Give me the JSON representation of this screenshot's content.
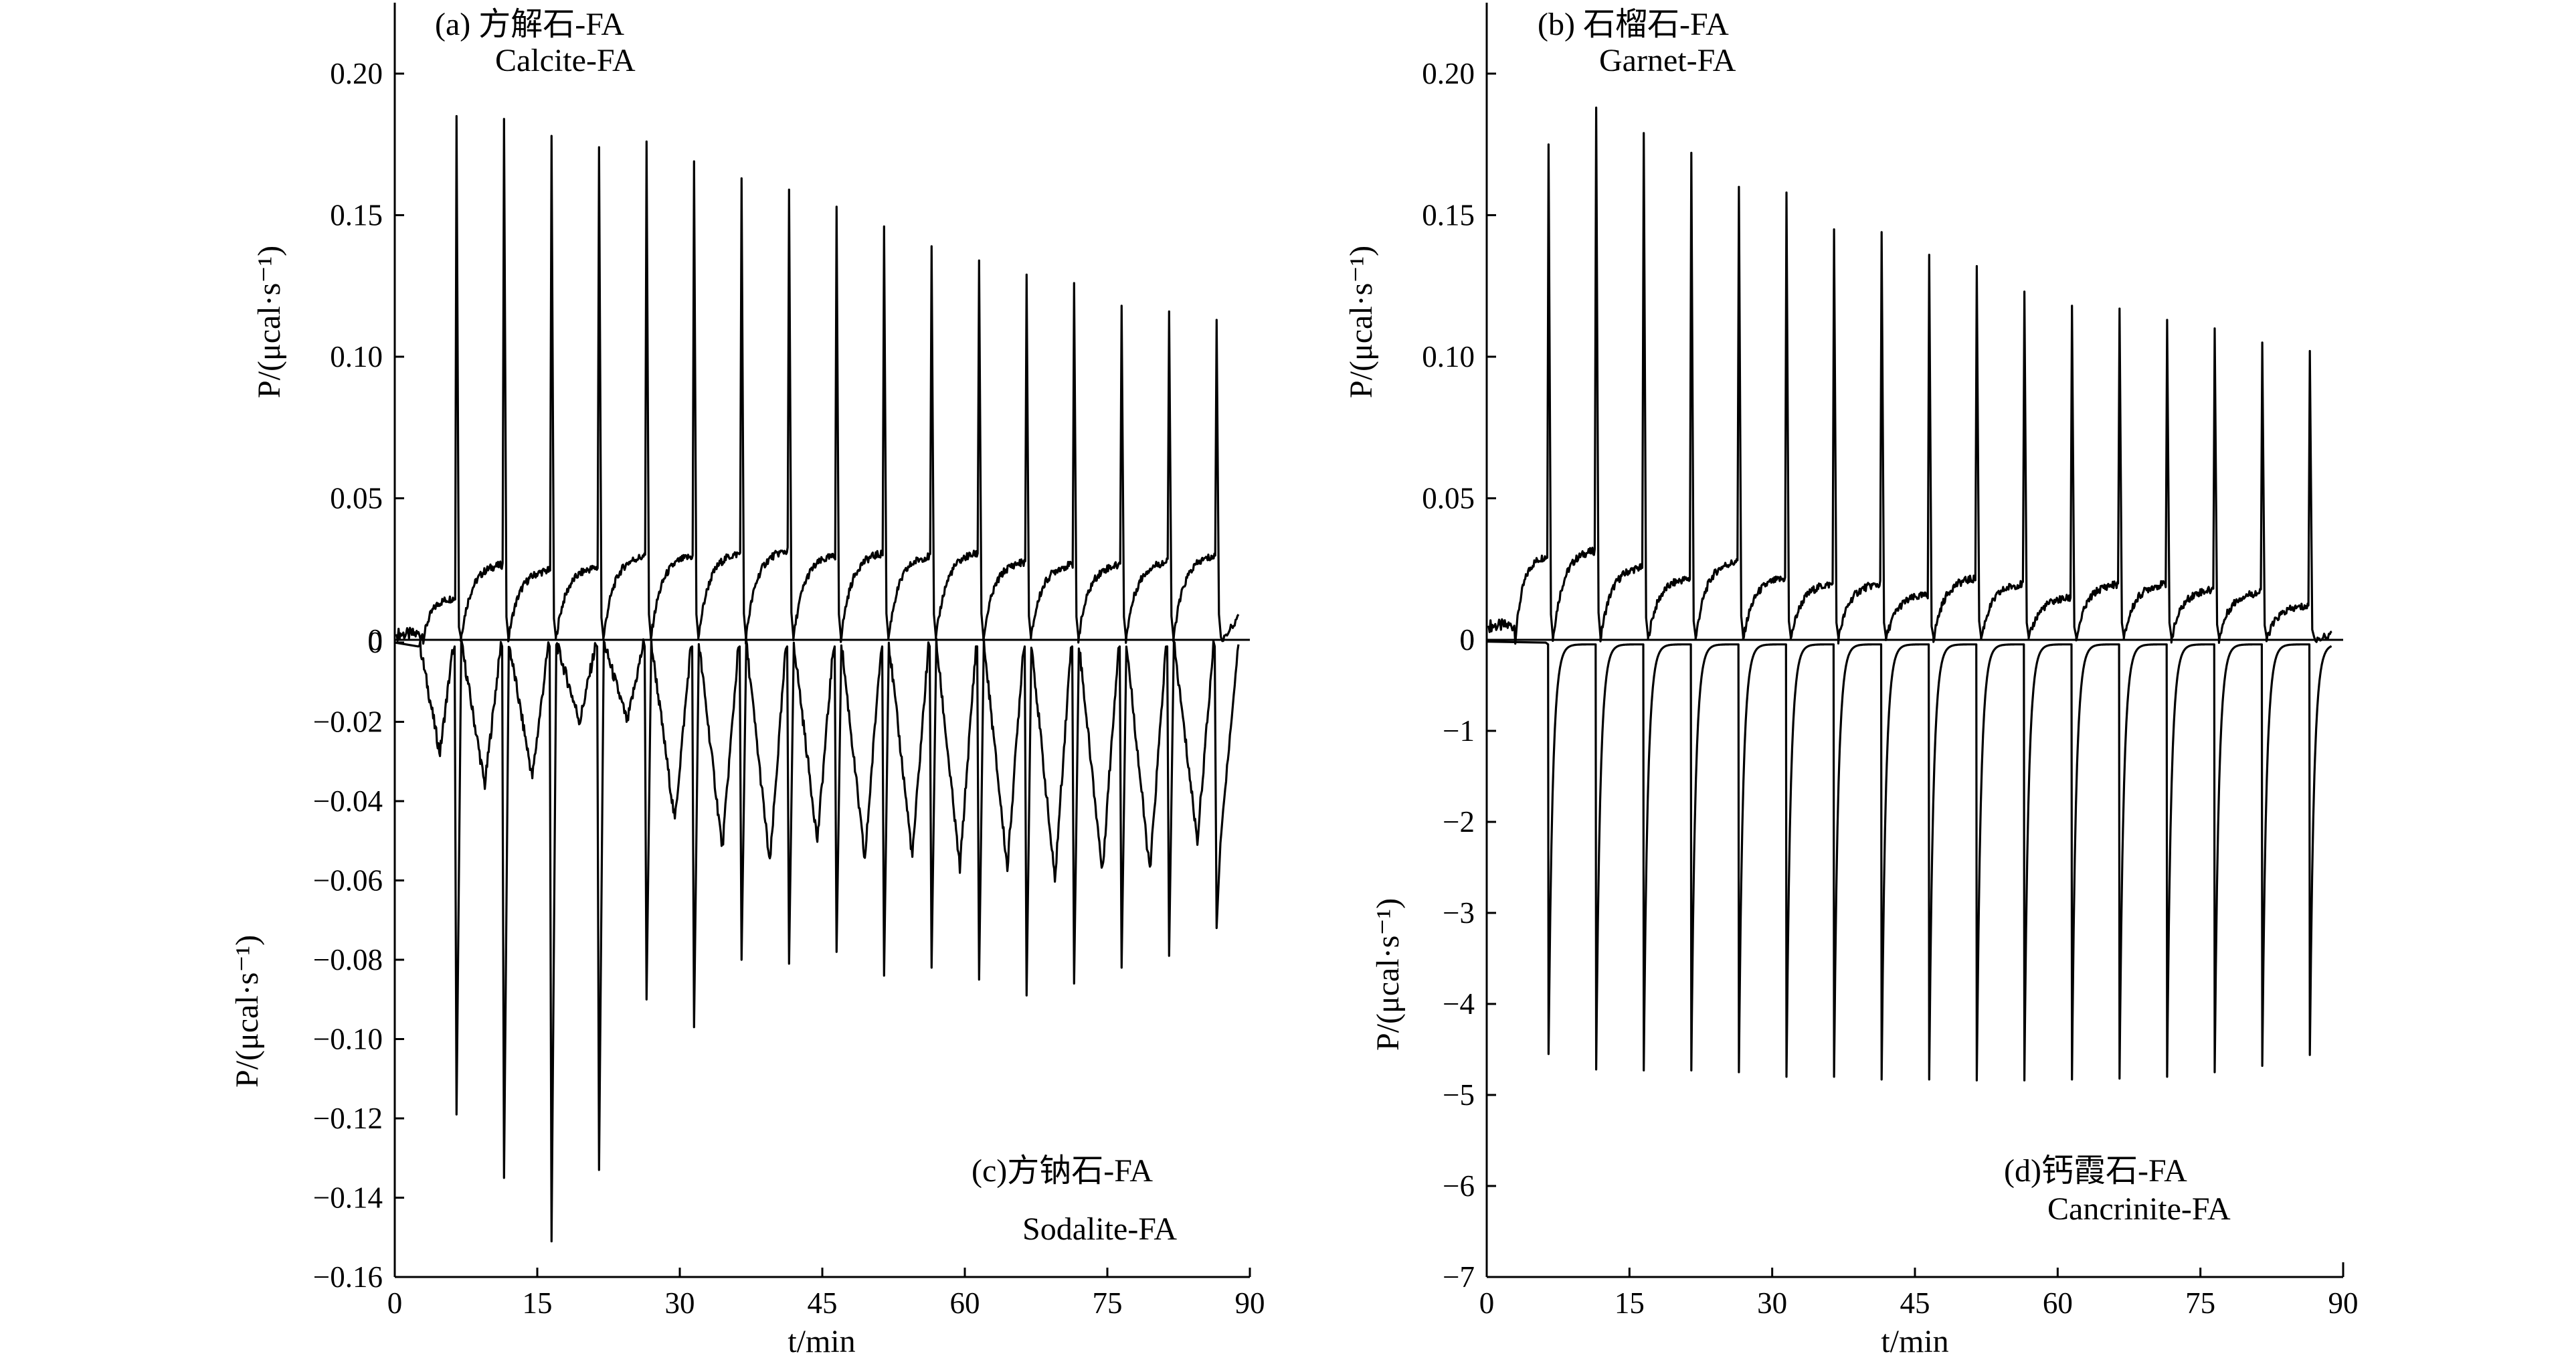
{
  "chart_data": [
    {
      "panel": "a",
      "type": "line",
      "title_cn": "(a) 方解石-FA",
      "title_en": "Calcite-FA",
      "ylabel": "P/(μcal·s⁻¹)",
      "xlim": [
        0,
        90
      ],
      "ylim": [
        0,
        0.225
      ],
      "yticks": [
        0,
        0.05,
        0.1,
        0.15,
        0.2
      ],
      "ytick_labels": [
        "0",
        "0.05",
        "0.10",
        "0.15",
        "0.20"
      ],
      "series": [
        {
          "peaks_x": [
            6.5,
            11.5,
            16.5,
            21.5,
            26.5,
            31.5,
            36.5,
            41.5,
            46.5,
            51.5,
            56.5,
            61.5,
            66.5,
            71.5,
            76.5,
            81.5,
            86.5
          ],
          "peaks_y": [
            0.185,
            0.184,
            0.178,
            0.174,
            0.176,
            0.169,
            0.163,
            0.159,
            0.153,
            0.146,
            0.139,
            0.134,
            0.129,
            0.126,
            0.118,
            0.116,
            0.113
          ],
          "baseline_y": [
            0.015,
            0.027,
            0.025,
            0.026,
            0.03,
            0.03,
            0.031,
            0.032,
            0.03,
            0.031,
            0.03,
            0.031,
            0.028,
            0.027,
            0.027,
            0.028,
            0.03
          ],
          "start_y": 0.002,
          "end_y": 0.008
        }
      ]
    },
    {
      "panel": "b",
      "type": "line",
      "title_cn": "(b) 石榴石-FA",
      "title_en": "Garnet-FA",
      "ylabel": "P/(μcal·s⁻¹)",
      "xlim": [
        0,
        90
      ],
      "ylim": [
        0,
        0.225
      ],
      "yticks": [
        0,
        0.05,
        0.1,
        0.15,
        0.2
      ],
      "ytick_labels": [
        "0",
        "0.05",
        "0.10",
        "0.15",
        "0.20"
      ],
      "series": [
        {
          "peaks_x": [
            6.5,
            11.5,
            16.5,
            21.5,
            26.5,
            31.5,
            36.5,
            41.5,
            46.5,
            51.5,
            56.5,
            61.5,
            66.5,
            71.5,
            76.5,
            81.5,
            86.5
          ],
          "peaks_y": [
            0.175,
            0.188,
            0.179,
            0.172,
            0.16,
            0.158,
            0.145,
            0.144,
            0.136,
            0.132,
            0.123,
            0.118,
            0.117,
            0.113,
            0.11,
            0.105,
            0.102
          ],
          "baseline_y": [
            0.03,
            0.032,
            0.026,
            0.022,
            0.028,
            0.022,
            0.02,
            0.02,
            0.016,
            0.022,
            0.02,
            0.015,
            0.02,
            0.02,
            0.018,
            0.017,
            0.012
          ],
          "start_y": 0.005,
          "end_y": 0.002
        }
      ]
    },
    {
      "panel": "c",
      "type": "line",
      "title_cn": "(c)方钠石-FA",
      "title_en": "Sodalite-FA",
      "ylabel": "P/(μcal·s⁻¹)",
      "xlabel": "t/min",
      "xlim": [
        0,
        90
      ],
      "xticks": [
        0,
        15,
        30,
        45,
        60,
        75,
        90
      ],
      "ylim": [
        -0.16,
        0
      ],
      "yticks": [
        0,
        -0.02,
        -0.04,
        -0.06,
        -0.08,
        -0.1,
        -0.12,
        -0.14,
        -0.16
      ],
      "ytick_labels": [
        "0",
        "−0.02",
        "−0.04",
        "−0.06",
        "−0.08",
        "−0.10",
        "−0.12",
        "−0.14",
        "−0.16"
      ],
      "series": [
        {
          "peaks_x": [
            6.5,
            11.5,
            16.5,
            21.5,
            26.5,
            31.5,
            36.5,
            41.5,
            46.5,
            51.5,
            56.5,
            61.5,
            66.5,
            71.5,
            76.5,
            81.5,
            86.5
          ],
          "peaks_y": [
            -0.119,
            -0.135,
            -0.151,
            -0.133,
            -0.09,
            -0.097,
            -0.08,
            -0.081,
            -0.078,
            -0.084,
            -0.082,
            -0.085,
            -0.089,
            -0.086,
            -0.082,
            -0.079,
            -0.072
          ],
          "baseline_y": [
            -0.028,
            -0.036,
            -0.034,
            -0.02,
            -0.02,
            -0.045,
            -0.052,
            -0.056,
            -0.05,
            -0.055,
            -0.054,
            -0.057,
            -0.057,
            -0.06,
            -0.058,
            -0.058,
            -0.05
          ],
          "start_y": 0,
          "end_y": -0.002
        }
      ]
    },
    {
      "panel": "d",
      "type": "line",
      "title_cn": "(d)钙霞石-FA",
      "title_en": "Cancrinite-FA",
      "ylabel": "P/(μcal·s⁻¹)",
      "xlabel": "t/min",
      "xlim": [
        0,
        90
      ],
      "xticks": [
        0,
        15,
        30,
        45,
        60,
        75,
        90
      ],
      "ylim": [
        -7,
        0
      ],
      "yticks": [
        0,
        -1,
        -2,
        -3,
        -4,
        -5,
        -6,
        -7
      ],
      "ytick_labels": [
        "0",
        "−1",
        "−2",
        "−3",
        "−4",
        "−5",
        "−6",
        "−7"
      ],
      "series": [
        {
          "peaks_x": [
            6.5,
            11.5,
            16.5,
            21.5,
            26.5,
            31.5,
            36.5,
            41.5,
            46.5,
            51.5,
            56.5,
            61.5,
            66.5,
            71.5,
            76.5,
            81.5,
            86.5
          ],
          "peaks_y": [
            -4.55,
            -4.72,
            -4.73,
            -4.73,
            -4.75,
            -4.8,
            -4.8,
            -4.83,
            -4.83,
            -4.84,
            -4.84,
            -4.83,
            -4.82,
            -4.8,
            -4.75,
            -4.68,
            -4.56
          ],
          "baseline_y": [
            -0.05,
            -0.05,
            -0.05,
            -0.05,
            -0.05,
            -0.05,
            -0.05,
            -0.05,
            -0.05,
            -0.05,
            -0.05,
            -0.05,
            -0.05,
            -0.05,
            -0.05,
            -0.05,
            -0.05
          ],
          "start_y": 0,
          "end_y": 0
        }
      ]
    }
  ]
}
